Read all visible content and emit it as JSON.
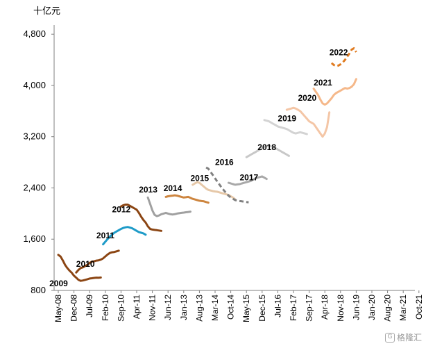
{
  "chart_data": {
    "type": "line",
    "ylabel": "十亿元",
    "ylim": [
      800,
      4900
    ],
    "y_ticks": [
      "800",
      "1,600",
      "2,400",
      "3,200",
      "4,000",
      "4,800"
    ],
    "y_tick_values": [
      800,
      1600,
      2400,
      3200,
      4000,
      4800
    ],
    "x_tick_labels": [
      "May-08",
      "Dec-08",
      "Jul-09",
      "Feb-10",
      "Sep-10",
      "Apr-11",
      "Nov-11",
      "Jun-12",
      "Jan-13",
      "Aug-13",
      "Mar-14",
      "Oct-14",
      "May-15",
      "Dec-15",
      "Jul-16",
      "Feb-17",
      "Sep-17",
      "Apr-18",
      "Nov-18",
      "Jun-19",
      "Jan-20",
      "Aug-20",
      "Mar-21",
      "Oct-21"
    ],
    "grid": false,
    "series": [
      {
        "name": "2009",
        "color": "#8B4513",
        "style": "solid",
        "x": [
          0,
          1,
          2,
          3,
          4,
          5,
          6,
          7,
          8,
          9,
          10,
          11,
          12,
          13,
          14,
          15,
          16,
          17,
          18,
          19
        ],
        "y": [
          1355,
          1330,
          1270,
          1200,
          1150,
          1110,
          1075,
          1030,
          1000,
          965,
          950,
          955,
          965,
          975,
          985,
          990,
          995,
          1000,
          998,
          1002
        ]
      },
      {
        "name": "2010",
        "color": "#8B4513",
        "style": "solid",
        "x": [
          8,
          9,
          10,
          11,
          12,
          13,
          14,
          15,
          16,
          17,
          18,
          19,
          20,
          21,
          22,
          23,
          24,
          25,
          26,
          27
        ],
        "y": [
          1080,
          1120,
          1150,
          1160,
          1180,
          1200,
          1230,
          1250,
          1255,
          1265,
          1270,
          1280,
          1300,
          1330,
          1360,
          1385,
          1395,
          1400,
          1410,
          1420
        ]
      },
      {
        "name": "2011",
        "color": "#1E9BC8",
        "style": "solid",
        "x": [
          20,
          21,
          22,
          23,
          24,
          25,
          26,
          27,
          28,
          29,
          30,
          31,
          32,
          33,
          34,
          35,
          36,
          37,
          38,
          39
        ],
        "y": [
          1520,
          1560,
          1600,
          1640,
          1670,
          1700,
          1720,
          1740,
          1760,
          1775,
          1785,
          1790,
          1780,
          1770,
          1750,
          1730,
          1710,
          1700,
          1690,
          1670
        ]
      },
      {
        "name": "2012",
        "color": "#8B4513",
        "style": "solid",
        "x": [
          28,
          29,
          30,
          31,
          32,
          33,
          34,
          35,
          36,
          37,
          38,
          39,
          40,
          41,
          42,
          43,
          44,
          45,
          46
        ],
        "y": [
          2110,
          2130,
          2140,
          2140,
          2120,
          2100,
          2080,
          2060,
          2010,
          1950,
          1900,
          1860,
          1800,
          1760,
          1750,
          1745,
          1740,
          1735,
          1730
        ]
      },
      {
        "name": "2013",
        "color": "#A0A0A0",
        "style": "solid",
        "x": [
          40,
          41,
          42,
          43,
          44,
          45,
          46,
          47,
          48,
          49,
          50,
          51,
          52,
          53,
          54,
          55,
          56,
          57,
          58,
          59
        ],
        "y": [
          2250,
          2150,
          2050,
          1980,
          1960,
          1970,
          1990,
          2000,
          2010,
          2000,
          1990,
          1985,
          1990,
          2000,
          2005,
          2010,
          2015,
          2020,
          2025,
          2030
        ]
      },
      {
        "name": "2014",
        "color": "#CD853F",
        "style": "solid",
        "x": [
          48,
          49,
          50,
          51,
          52,
          53,
          54,
          55,
          56,
          57,
          58,
          59,
          60,
          61,
          62,
          63,
          64,
          65,
          66,
          67
        ],
        "y": [
          2260,
          2270,
          2275,
          2280,
          2285,
          2280,
          2270,
          2260,
          2250,
          2255,
          2260,
          2245,
          2230,
          2220,
          2210,
          2200,
          2195,
          2190,
          2180,
          2170
        ]
      },
      {
        "name": "2015",
        "color": "#E6C8A8",
        "style": "solid",
        "x": [
          60,
          61,
          62,
          63,
          64,
          65,
          66,
          67,
          68,
          69,
          70,
          71,
          72,
          73,
          74,
          75,
          76,
          77,
          78,
          79
        ],
        "y": [
          2450,
          2470,
          2490,
          2480,
          2450,
          2420,
          2390,
          2370,
          2360,
          2350,
          2345,
          2340,
          2330,
          2320,
          2310,
          2300,
          2290,
          2270,
          2250,
          2220
        ]
      },
      {
        "name": "2016",
        "color": "#808080",
        "style": "dashed",
        "x": [
          66,
          67,
          68,
          69,
          70,
          71,
          72,
          73,
          74,
          75,
          76,
          77,
          78,
          79,
          80,
          81,
          82,
          83,
          84,
          85
        ],
        "y": [
          2720,
          2700,
          2650,
          2600,
          2550,
          2500,
          2450,
          2400,
          2360,
          2320,
          2280,
          2250,
          2230,
          2210,
          2200,
          2195,
          2190,
          2185,
          2180,
          2175
        ]
      },
      {
        "name": "2017",
        "color": "#A9A9A9",
        "style": "solid",
        "x": [
          76,
          77,
          78,
          79,
          80,
          81,
          82,
          83,
          84,
          85,
          86,
          87,
          88,
          89,
          90,
          91,
          92,
          93
        ],
        "y": [
          2480,
          2470,
          2460,
          2450,
          2455,
          2460,
          2470,
          2480,
          2490,
          2500,
          2510,
          2530,
          2550,
          2560,
          2570,
          2580,
          2560,
          2540
        ]
      },
      {
        "name": "2018",
        "color": "#C8C8C8",
        "style": "solid",
        "x": [
          84,
          85,
          86,
          87,
          88,
          89,
          90,
          91,
          92,
          93,
          94,
          95,
          96,
          97,
          98,
          99,
          100,
          101,
          102,
          103
        ],
        "y": [
          2880,
          2900,
          2920,
          2940,
          2960,
          2980,
          3000,
          3020,
          3040,
          3050,
          3060,
          3050,
          3040,
          3020,
          3000,
          2980,
          2960,
          2940,
          2920,
          2900
        ]
      },
      {
        "name": "2019",
        "color": "#D3D3D3",
        "style": "solid",
        "x": [
          92,
          93,
          94,
          95,
          96,
          97,
          98,
          99,
          100,
          101,
          102,
          103,
          104,
          105,
          106,
          107,
          108,
          109,
          110,
          111
        ],
        "y": [
          3460,
          3450,
          3440,
          3420,
          3400,
          3380,
          3360,
          3350,
          3340,
          3330,
          3320,
          3300,
          3280,
          3260,
          3250,
          3260,
          3270,
          3260,
          3250,
          3240
        ]
      },
      {
        "name": "2020",
        "color": "#F4C6A6",
        "style": "solid",
        "x": [
          102,
          103,
          104,
          105,
          106,
          107,
          108,
          109,
          110,
          111,
          112,
          113,
          114,
          115,
          116,
          117,
          118,
          119,
          120,
          121
        ],
        "y": [
          3620,
          3630,
          3640,
          3650,
          3640,
          3620,
          3600,
          3560,
          3520,
          3480,
          3440,
          3420,
          3400,
          3350,
          3300,
          3250,
          3200,
          3250,
          3350,
          3580
        ]
      },
      {
        "name": "2021",
        "color": "#F5B88A",
        "style": "solid",
        "x": [
          114,
          115,
          116,
          117,
          118,
          119,
          120,
          121,
          122,
          123,
          124,
          125,
          126,
          127,
          128,
          129,
          130,
          131,
          132,
          133
        ],
        "y": [
          3950,
          3900,
          3850,
          3780,
          3720,
          3700,
          3720,
          3760,
          3800,
          3850,
          3880,
          3900,
          3920,
          3940,
          3960,
          3950,
          3960,
          3980,
          4020,
          4100
        ]
      },
      {
        "name": "2022",
        "color": "#E07B20",
        "style": "dashed",
        "x": [
          122,
          123,
          124,
          125,
          126,
          127,
          128,
          129,
          130,
          131,
          132,
          133
        ],
        "y": [
          4350,
          4320,
          4300,
          4310,
          4330,
          4360,
          4400,
          4450,
          4500,
          4560,
          4580,
          4520
        ]
      }
    ],
    "annotations": [
      {
        "text": "2009",
        "x": -4,
        "y": 865
      },
      {
        "text": "2010",
        "x": 8,
        "y": 1170
      },
      {
        "text": "2011",
        "x": 17,
        "y": 1615
      },
      {
        "text": "2012",
        "x": 24,
        "y": 2020
      },
      {
        "text": "2013",
        "x": 36,
        "y": 2330
      },
      {
        "text": "2014",
        "x": 47,
        "y": 2350
      },
      {
        "text": "2015",
        "x": 59,
        "y": 2510
      },
      {
        "text": "2016",
        "x": 70,
        "y": 2760
      },
      {
        "text": "2017",
        "x": 81,
        "y": 2520
      },
      {
        "text": "2018",
        "x": 89,
        "y": 2990
      },
      {
        "text": "2019",
        "x": 98,
        "y": 3440
      },
      {
        "text": "2020",
        "x": 107,
        "y": 3760
      },
      {
        "text": "2021",
        "x": 114,
        "y": 4000
      },
      {
        "text": "2022",
        "x": 121,
        "y": 4470
      }
    ]
  },
  "watermark": {
    "text": "格隆汇",
    "logo": "G"
  }
}
